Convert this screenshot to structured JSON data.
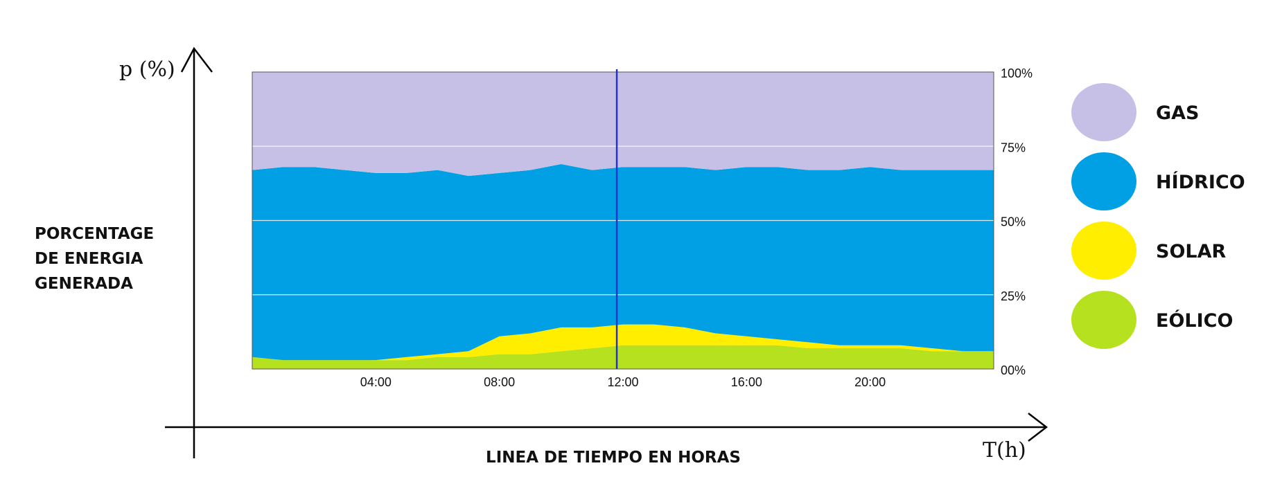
{
  "chart_data": {
    "type": "area",
    "stacked": true,
    "percent": true,
    "title": "",
    "ylabel_short": "p (%)",
    "ylabel_lines": [
      "PORCENTAGE",
      "DE ENERGIA",
      "GENERADA"
    ],
    "xlabel_short": "T(h)",
    "xlabel": "LINEA DE TIEMPO EN HORAS",
    "x": [
      0,
      1,
      2,
      3,
      4,
      5,
      6,
      7,
      8,
      9,
      10,
      11,
      12,
      13,
      14,
      15,
      16,
      17,
      18,
      19,
      20,
      21,
      22,
      23,
      24
    ],
    "x_ticks": [
      {
        "x": 4,
        "label": "04:00"
      },
      {
        "x": 8,
        "label": "08:00"
      },
      {
        "x": 12,
        "label": "12:00"
      },
      {
        "x": 16,
        "label": "16:00"
      },
      {
        "x": 20,
        "label": "20:00"
      }
    ],
    "y_ticks": [
      {
        "y": 0,
        "label": "00%"
      },
      {
        "y": 25,
        "label": "25%"
      },
      {
        "y": 50,
        "label": "50%"
      },
      {
        "y": 75,
        "label": "75%"
      },
      {
        "y": 100,
        "label": "100%"
      }
    ],
    "ylim": [
      0,
      100
    ],
    "xlim": [
      0,
      24
    ],
    "grid": true,
    "marker_x": 11.8,
    "series": [
      {
        "name": "EÓLICO",
        "color": "#b5e11f",
        "values": [
          4,
          3,
          3,
          3,
          3,
          3,
          4,
          4,
          5,
          5,
          6,
          7,
          8,
          8,
          8,
          8,
          8,
          8,
          7,
          7,
          7,
          7,
          6,
          6,
          6
        ]
      },
      {
        "name": "SOLAR",
        "color": "#ffee00",
        "values": [
          0,
          0,
          0,
          0,
          0,
          1,
          1,
          2,
          6,
          7,
          8,
          7,
          7,
          7,
          6,
          4,
          3,
          2,
          2,
          1,
          1,
          1,
          1,
          0,
          0
        ]
      },
      {
        "name": "HÍDRICO",
        "color": "#01a0e4",
        "values": [
          63,
          65,
          65,
          64,
          63,
          62,
          62,
          59,
          55,
          55,
          55,
          53,
          53,
          53,
          54,
          55,
          57,
          58,
          58,
          59,
          60,
          59,
          60,
          61,
          61
        ]
      },
      {
        "name": "GAS",
        "color": "#c6c0e6",
        "values": [
          33,
          32,
          32,
          33,
          34,
          34,
          33,
          35,
          34,
          33,
          31,
          33,
          32,
          32,
          32,
          33,
          32,
          32,
          33,
          33,
          32,
          33,
          33,
          33,
          33
        ]
      }
    ]
  }
}
